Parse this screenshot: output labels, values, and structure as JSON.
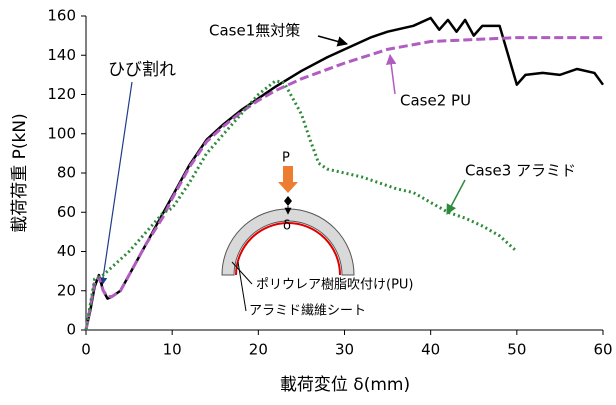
{
  "chart_data": {
    "type": "line",
    "xlabel": "載荷変位 δ(mm)",
    "ylabel": "載荷荷重 P(kN)",
    "xlim": [
      0,
      60
    ],
    "ylim": [
      0,
      160
    ],
    "xticks": [
      0,
      10,
      20,
      30,
      40,
      50,
      60
    ],
    "yticks": [
      0,
      20,
      40,
      60,
      80,
      100,
      120,
      140,
      160
    ],
    "series": [
      {
        "name": "Case1無対策",
        "color": "#000000",
        "dash": "solid",
        "x": [
          0,
          0.5,
          1,
          1.5,
          2,
          2.5,
          3,
          4,
          5,
          6,
          7,
          8,
          9,
          10,
          12,
          14,
          16,
          18,
          20,
          22,
          25,
          28,
          30,
          33,
          35,
          38,
          40,
          41,
          42,
          43,
          44,
          45,
          46,
          48,
          49,
          50,
          51,
          53,
          55,
          57,
          59,
          60
        ],
        "values": [
          0,
          10,
          22,
          28,
          20,
          16,
          17,
          20,
          28,
          36,
          44,
          52,
          60,
          68,
          84,
          97,
          105,
          112,
          118,
          124,
          132,
          139,
          143,
          149,
          152,
          155,
          159,
          153,
          158,
          152,
          158,
          150,
          155,
          155,
          140,
          125,
          130,
          131,
          130,
          133,
          131,
          125
        ]
      },
      {
        "name": "Case2 PU",
        "color": "#b05cc0",
        "dash": "dashed",
        "x": [
          0,
          0.5,
          1,
          1.5,
          2,
          2.5,
          3,
          4,
          5,
          6,
          7,
          8,
          9,
          10,
          12,
          14,
          16,
          18,
          20,
          22,
          25,
          30,
          35,
          40,
          45,
          50,
          55,
          60
        ],
        "values": [
          0,
          12,
          24,
          27,
          20,
          17,
          17,
          20,
          28,
          36,
          44,
          51,
          58,
          67,
          83,
          96,
          104,
          111,
          117,
          122,
          128,
          136,
          143,
          147,
          148,
          149,
          149,
          149
        ]
      },
      {
        "name": "Case3 アラミド",
        "color": "#2e8b3a",
        "dash": "dotted",
        "x": [
          0,
          1,
          2,
          3,
          5,
          7,
          9,
          10,
          12,
          14,
          16,
          18,
          20,
          22,
          23,
          24,
          25,
          26,
          27,
          28,
          30,
          32,
          34,
          36,
          38,
          40,
          42,
          44,
          46,
          48,
          50
        ],
        "values": [
          0,
          26,
          28,
          32,
          40,
          50,
          60,
          62,
          75,
          90,
          100,
          110,
          120,
          127,
          126,
          118,
          110,
          97,
          85,
          82,
          80,
          78,
          75,
          72,
          70,
          65,
          60,
          57,
          53,
          48,
          40
        ]
      }
    ],
    "annotations": [
      "ひび割れ",
      "P",
      "δ",
      "ポリウレア樹脂吹付け(PU)",
      "アラミド繊維シート"
    ]
  }
}
